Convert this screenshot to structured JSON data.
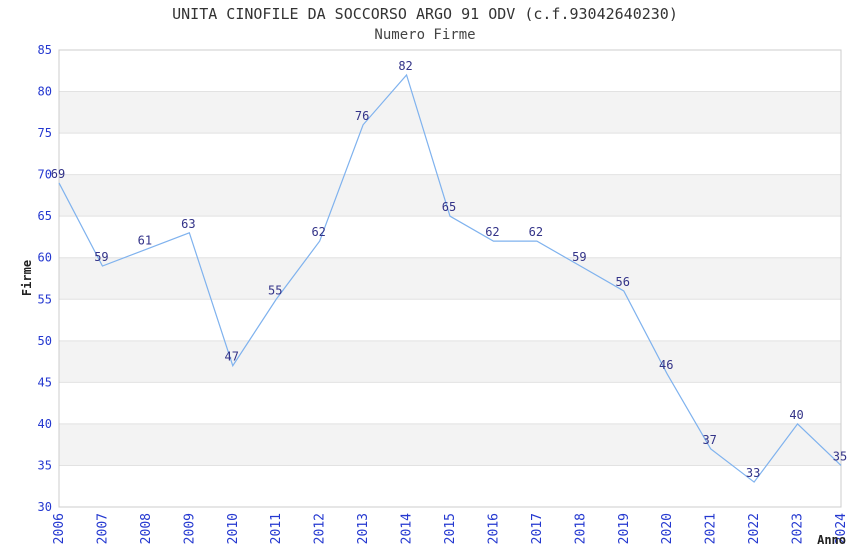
{
  "chart_data": {
    "type": "line",
    "title": "UNITA CINOFILE DA SOCCORSO ARGO 91 ODV (c.f.93042640230)",
    "subtitle": "Numero Firme",
    "xlabel": "Anno",
    "ylabel": "Firme",
    "categories": [
      "2006",
      "2007",
      "2008",
      "2009",
      "2010",
      "2011",
      "2012",
      "2013",
      "2014",
      "2015",
      "2016",
      "2017",
      "2018",
      "2019",
      "2020",
      "2021",
      "2022",
      "2023",
      "2024"
    ],
    "values": [
      69,
      59,
      61,
      63,
      47,
      55,
      62,
      76,
      82,
      65,
      62,
      62,
      59,
      56,
      46,
      37,
      33,
      40,
      35
    ],
    "ylim": [
      30,
      85
    ],
    "ytick_step": 5,
    "yticks": [
      30,
      35,
      40,
      45,
      50,
      55,
      60,
      65,
      70,
      75,
      80,
      85
    ],
    "grid": true,
    "legend": "none",
    "point_labels_visible": true,
    "colors": {
      "line": "#7fb2ee",
      "tick_label": "#2438d0",
      "data_label": "#333388",
      "band": "#f3f3f3",
      "gridline": "#e2e2e2",
      "border": "#cccccc",
      "title": "#333333",
      "subtitle": "#444444",
      "axis_title": "#222222"
    }
  }
}
